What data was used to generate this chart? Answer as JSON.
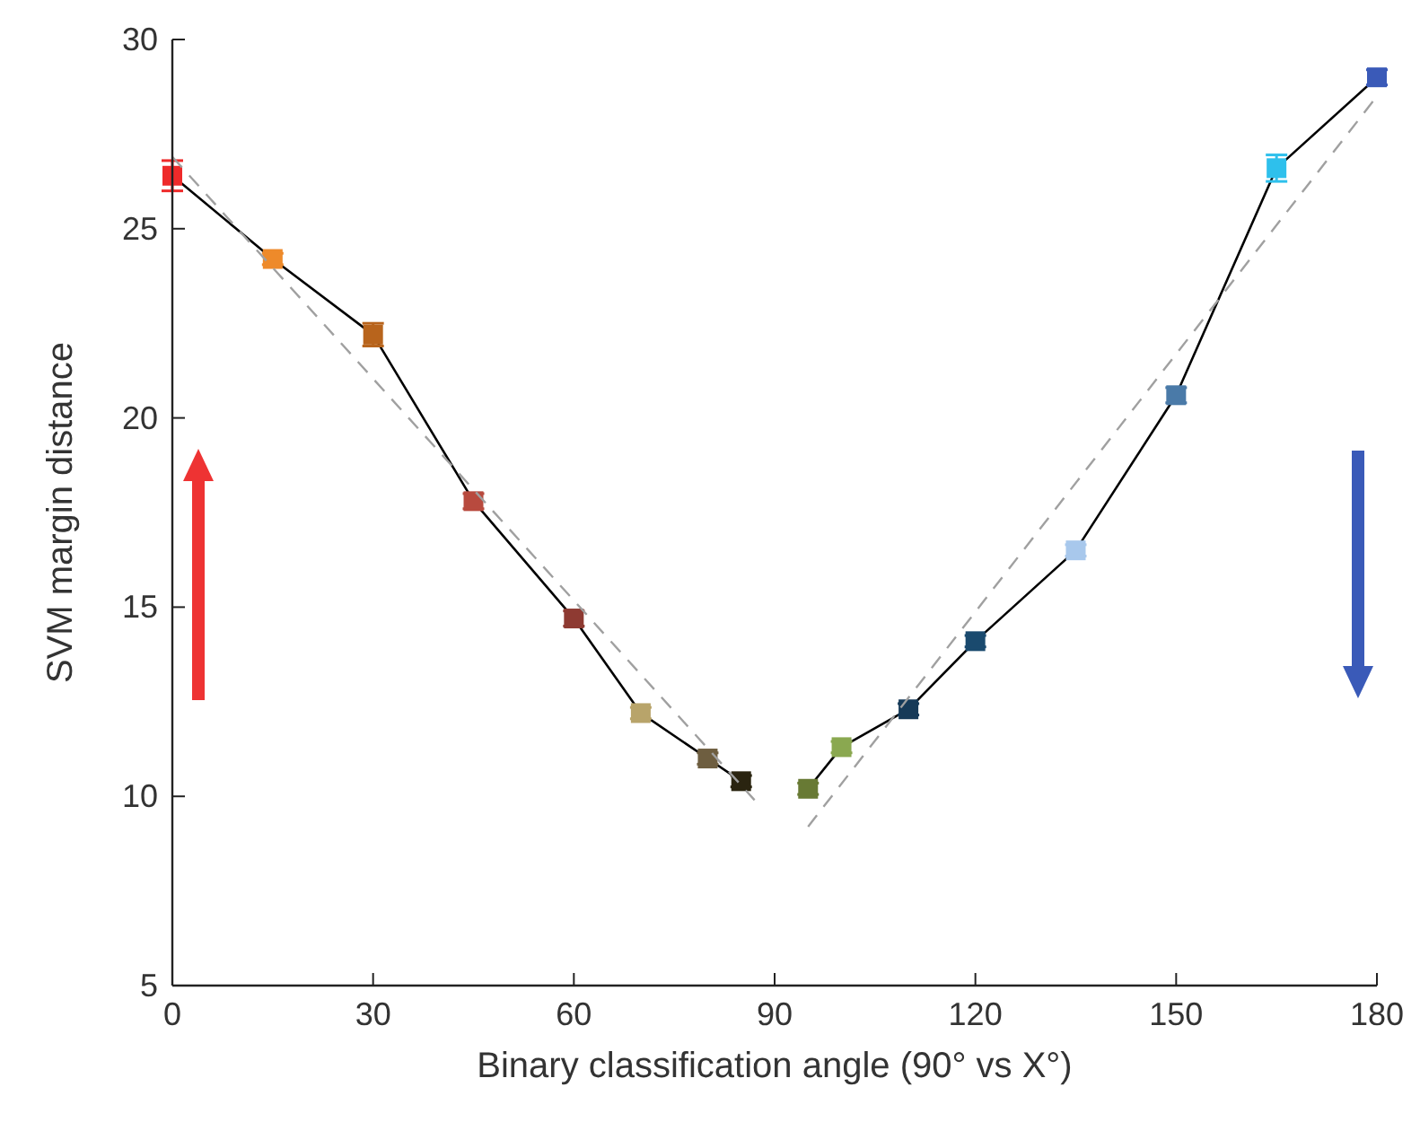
{
  "chart_data": {
    "type": "line",
    "xlabel": "Binary classification angle (90° vs X°)",
    "ylabel": "SVM margin distance",
    "xlim": [
      0,
      180
    ],
    "xticks": [
      0,
      30,
      60,
      90,
      120,
      150,
      180
    ],
    "ylim": [
      5,
      30
    ],
    "yticks": [
      5,
      10,
      15,
      20,
      25,
      30
    ],
    "marker": "square",
    "line_style": "solid",
    "series": [
      {
        "color": "#000000",
        "x": [
          0,
          15,
          30,
          45,
          60,
          70,
          80,
          85
        ],
        "values": [
          26.4,
          24.2,
          22.2,
          17.8,
          14.7,
          12.2,
          11.0,
          10.4
        ],
        "errors": [
          0.4,
          0.15,
          0.3,
          0.2,
          0.2,
          0.15,
          0.15,
          0.15
        ],
        "colors": [
          "#ee2a2a",
          "#ee8a2a",
          "#b8641c",
          "#b84a3e",
          "#8e3a32",
          "#b8a46a",
          "#6e5e40",
          "#2a2410"
        ]
      },
      {
        "color": "#000000",
        "x": [
          95,
          100,
          110,
          120,
          135,
          150,
          165,
          180
        ],
        "values": [
          10.2,
          11.3,
          12.3,
          14.1,
          16.5,
          20.6,
          26.6,
          29.0
        ],
        "errors": [
          0.15,
          0.15,
          0.15,
          0.15,
          0.15,
          0.2,
          0.35,
          0.2
        ],
        "colors": [
          "#687a34",
          "#8aa850",
          "#163a58",
          "#1a4a6e",
          "#a8c8ec",
          "#4a7aa8",
          "#2ec0ec",
          "#3a5ab8"
        ]
      },
      {
        "type": "line",
        "color": "#a0a0a0",
        "line_style": "dashed",
        "marker": "none",
        "x": [
          0,
          87
        ],
        "values": [
          26.9,
          9.9
        ]
      },
      {
        "type": "line",
        "color": "#a0a0a0",
        "line_style": "dashed",
        "marker": "none",
        "x": [
          95,
          180
        ],
        "values": [
          9.2,
          28.5
        ]
      }
    ]
  }
}
